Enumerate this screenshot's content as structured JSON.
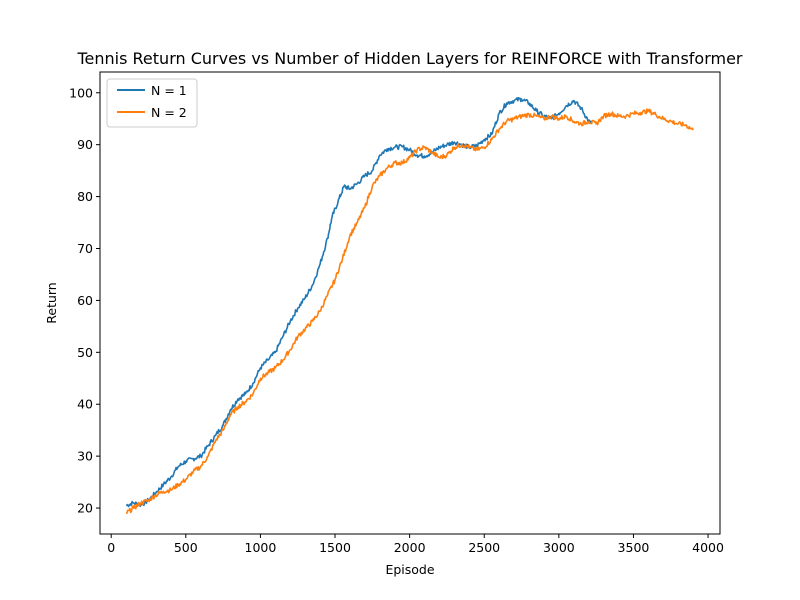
{
  "chart_data": {
    "type": "line",
    "title": "Tennis Return Curves vs Number of Hidden Layers for REINFORCE with Transformer",
    "xlabel": "Episode",
    "ylabel": "Return",
    "xlim": [
      -75,
      4080
    ],
    "ylim": [
      15,
      104
    ],
    "xticks": [
      0,
      500,
      1000,
      1500,
      2000,
      2500,
      3000,
      3500,
      4000
    ],
    "yticks": [
      20,
      30,
      40,
      50,
      60,
      70,
      80,
      90,
      100
    ],
    "grid": false,
    "legend_position": "top-left",
    "series": [
      {
        "name": "N = 1",
        "color": "#1f77b4",
        "points": [
          [
            100,
            20.5
          ],
          [
            150,
            21.0
          ],
          [
            200,
            20.6
          ],
          [
            250,
            21.5
          ],
          [
            300,
            23.0
          ],
          [
            350,
            24.5
          ],
          [
            400,
            26.0
          ],
          [
            450,
            28.0
          ],
          [
            500,
            29.0
          ],
          [
            550,
            29.5
          ],
          [
            600,
            30.0
          ],
          [
            650,
            32.0
          ],
          [
            700,
            34.0
          ],
          [
            750,
            36.0
          ],
          [
            800,
            39.0
          ],
          [
            850,
            41.0
          ],
          [
            900,
            42.0
          ],
          [
            950,
            44.0
          ],
          [
            1000,
            47.0
          ],
          [
            1050,
            48.5
          ],
          [
            1100,
            50.0
          ],
          [
            1150,
            53.0
          ],
          [
            1200,
            56.0
          ],
          [
            1250,
            58.5
          ],
          [
            1300,
            60.5
          ],
          [
            1350,
            63.0
          ],
          [
            1400,
            67.0
          ],
          [
            1450,
            72.0
          ],
          [
            1480,
            76.0
          ],
          [
            1520,
            79.0
          ],
          [
            1560,
            82.0
          ],
          [
            1600,
            81.5
          ],
          [
            1650,
            82.5
          ],
          [
            1700,
            84.0
          ],
          [
            1750,
            85.0
          ],
          [
            1800,
            88.0
          ],
          [
            1850,
            89.2
          ],
          [
            1900,
            89.5
          ],
          [
            1950,
            89.6
          ],
          [
            2000,
            89.0
          ],
          [
            2050,
            88.0
          ],
          [
            2100,
            87.8
          ],
          [
            2150,
            88.5
          ],
          [
            2200,
            89.5
          ],
          [
            2250,
            90.0
          ],
          [
            2300,
            90.5
          ],
          [
            2350,
            90.0
          ],
          [
            2400,
            89.5
          ],
          [
            2450,
            89.8
          ],
          [
            2500,
            91.0
          ],
          [
            2550,
            92.0
          ],
          [
            2600,
            96.0
          ],
          [
            2650,
            98.0
          ],
          [
            2700,
            98.5
          ],
          [
            2750,
            98.8
          ],
          [
            2800,
            98.0
          ],
          [
            2850,
            96.5
          ],
          [
            2900,
            95.5
          ],
          [
            2950,
            95.0
          ],
          [
            3000,
            96.0
          ],
          [
            3050,
            97.5
          ],
          [
            3100,
            98.5
          ],
          [
            3150,
            97.0
          ],
          [
            3200,
            94.5
          ],
          [
            3220,
            94.0
          ]
        ]
      },
      {
        "name": "N = 2",
        "color": "#ff7f0e",
        "points": [
          [
            100,
            19.0
          ],
          [
            150,
            20.0
          ],
          [
            200,
            21.0
          ],
          [
            250,
            21.5
          ],
          [
            300,
            22.5
          ],
          [
            350,
            23.2
          ],
          [
            400,
            23.5
          ],
          [
            450,
            24.5
          ],
          [
            500,
            25.5
          ],
          [
            550,
            27.0
          ],
          [
            600,
            28.0
          ],
          [
            650,
            30.0
          ],
          [
            700,
            33.0
          ],
          [
            750,
            35.0
          ],
          [
            800,
            38.0
          ],
          [
            850,
            39.5
          ],
          [
            900,
            40.5
          ],
          [
            950,
            42.0
          ],
          [
            1000,
            45.0
          ],
          [
            1050,
            46.0
          ],
          [
            1100,
            47.0
          ],
          [
            1150,
            48.5
          ],
          [
            1200,
            50.5
          ],
          [
            1250,
            53.0
          ],
          [
            1300,
            54.5
          ],
          [
            1350,
            56.0
          ],
          [
            1400,
            58.0
          ],
          [
            1450,
            61.0
          ],
          [
            1500,
            64.0
          ],
          [
            1550,
            68.0
          ],
          [
            1600,
            72.5
          ],
          [
            1650,
            75.0
          ],
          [
            1700,
            78.0
          ],
          [
            1750,
            82.0
          ],
          [
            1800,
            84.0
          ],
          [
            1850,
            85.5
          ],
          [
            1900,
            86.5
          ],
          [
            1950,
            86.5
          ],
          [
            2000,
            87.5
          ],
          [
            2050,
            89.0
          ],
          [
            2100,
            89.5
          ],
          [
            2150,
            88.5
          ],
          [
            2200,
            87.5
          ],
          [
            2250,
            88.0
          ],
          [
            2300,
            89.5
          ],
          [
            2350,
            90.0
          ],
          [
            2400,
            89.5
          ],
          [
            2450,
            89.0
          ],
          [
            2500,
            89.5
          ],
          [
            2550,
            91.0
          ],
          [
            2600,
            93.0
          ],
          [
            2650,
            94.5
          ],
          [
            2700,
            95.0
          ],
          [
            2750,
            95.5
          ],
          [
            2800,
            95.8
          ],
          [
            2850,
            95.5
          ],
          [
            2900,
            95.0
          ],
          [
            2950,
            95.5
          ],
          [
            3000,
            95.0
          ],
          [
            3050,
            95.5
          ],
          [
            3100,
            94.5
          ],
          [
            3150,
            94.0
          ],
          [
            3200,
            94.5
          ],
          [
            3250,
            94.0
          ],
          [
            3300,
            95.5
          ],
          [
            3350,
            96.0
          ],
          [
            3400,
            95.5
          ],
          [
            3450,
            95.5
          ],
          [
            3500,
            96.0
          ],
          [
            3550,
            96.2
          ],
          [
            3600,
            96.5
          ],
          [
            3650,
            95.8
          ],
          [
            3700,
            95.0
          ],
          [
            3750,
            94.5
          ],
          [
            3800,
            94.0
          ],
          [
            3850,
            93.8
          ],
          [
            3900,
            92.8
          ]
        ]
      }
    ]
  }
}
